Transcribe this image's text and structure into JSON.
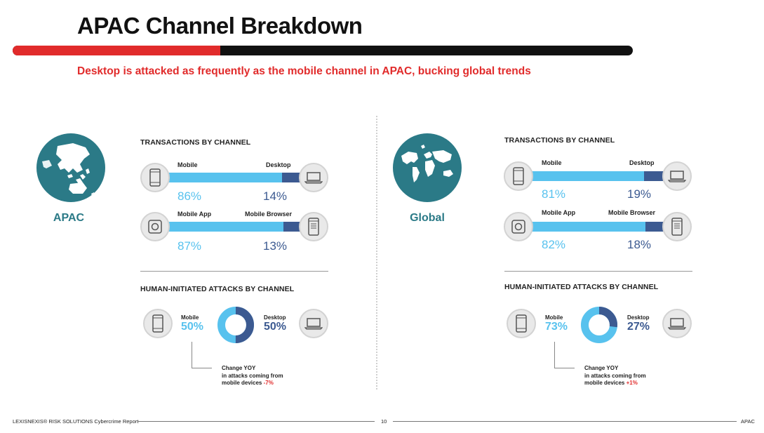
{
  "header": {
    "title": "APAC Channel Breakdown",
    "subtitle": "Desktop is attacked as frequently as the mobile channel in APAC, bucking global trends"
  },
  "colors": {
    "red": "#e12b2b",
    "light_blue": "#58c2ee",
    "dark_blue": "#3c5a91",
    "teal": "#2b7a87"
  },
  "panels": [
    {
      "region": "APAC",
      "transactions": {
        "heading": "TRANSACTIONS BY CHANNEL",
        "rows": [
          {
            "left_label": "Mobile",
            "right_label": "Desktop",
            "left_pct": "86%",
            "right_pct": "14%",
            "left_value": 86,
            "left_icon": "mobile-icon",
            "right_icon": "laptop-icon"
          },
          {
            "left_label": "Mobile App",
            "right_label": "Mobile Browser",
            "left_pct": "87%",
            "right_pct": "13%",
            "left_value": 87,
            "left_icon": "app-icon",
            "right_icon": "browser-icon"
          }
        ]
      },
      "attacks": {
        "heading": "HUMAN-INITIATED ATTACKS BY CHANNEL",
        "left_label": "Mobile",
        "left_pct": "50%",
        "left_value": 50,
        "right_label": "Desktop",
        "right_pct": "50%",
        "note_line1": "Change YOY",
        "note_line2": "in attacks coming from",
        "note_line3": "mobile devices",
        "change": "-7%"
      }
    },
    {
      "region": "Global",
      "transactions": {
        "heading": "TRANSACTIONS BY CHANNEL",
        "rows": [
          {
            "left_label": "Mobile",
            "right_label": "Desktop",
            "left_pct": "81%",
            "right_pct": "19%",
            "left_value": 81,
            "left_icon": "mobile-icon",
            "right_icon": "laptop-icon"
          },
          {
            "left_label": "Mobile App",
            "right_label": "Mobile Browser",
            "left_pct": "82%",
            "right_pct": "18%",
            "left_value": 82,
            "left_icon": "app-icon",
            "right_icon": "browser-icon"
          }
        ]
      },
      "attacks": {
        "heading": "HUMAN-INITIATED ATTACKS BY CHANNEL",
        "left_label": "Mobile",
        "left_pct": "73%",
        "left_value": 73,
        "right_label": "Desktop",
        "right_pct": "27%",
        "note_line1": "Change YOY",
        "note_line2": "in attacks coming from",
        "note_line3": "mobile devices",
        "change": "+1%"
      }
    }
  ],
  "footer": {
    "left": "LEXISNEXIS® RISK SOLUTIONS Cybercrime Report",
    "page": "10",
    "right": "APAC"
  }
}
